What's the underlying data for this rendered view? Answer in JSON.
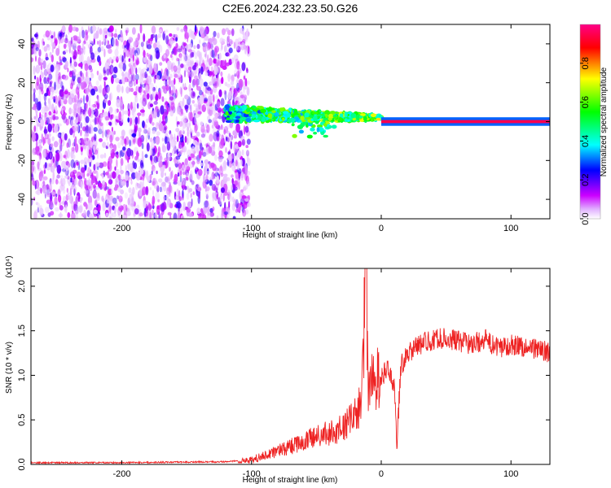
{
  "chart_data": [
    {
      "type": "heatmap",
      "title": "C2E6.2024.232.23.50.G26",
      "xlabel": "Height of straight line (km)",
      "ylabel": "Frequency (Hz)",
      "xlim": [
        -270,
        130
      ],
      "ylim": [
        -50,
        50
      ],
      "x_ticks": [
        -200,
        -100,
        0,
        100
      ],
      "y_ticks": [
        -40,
        -20,
        0,
        20,
        40
      ],
      "colorbar": {
        "label": "Normalized spectral amplitude",
        "range": [
          0,
          1
        ],
        "ticks": [
          "0.0",
          "0.2",
          "0.4",
          "0.6",
          "0.8"
        ],
        "colors": [
          "#ffffff",
          "#cc00ff",
          "#0000ff",
          "#00ffff",
          "#00ff00",
          "#ffff00",
          "#ff0000",
          "#ff00aa"
        ]
      },
      "segments": [
        {
          "name": "noise",
          "x_range": [
            -270,
            -110
          ],
          "freq_range": [
            -50,
            48
          ],
          "amplitude": 0.1
        },
        {
          "name": "signal",
          "x_range": [
            -120,
            0
          ],
          "freq_center": [
            4,
            6,
            5,
            3,
            2
          ],
          "freq_spread": 8,
          "amplitude": 0.5
        },
        {
          "name": "line",
          "x_range": [
            0,
            130
          ],
          "freq_center": 0,
          "amplitude": 0.95
        }
      ]
    },
    {
      "type": "line",
      "title": "",
      "xlabel": "Height of straight line (km)",
      "ylabel": "SNR (10 * v/v)",
      "y_multiplier": "(x10⁴)",
      "xlim": [
        -270,
        130
      ],
      "ylim": [
        0,
        2.2
      ],
      "x_ticks": [
        -200,
        -100,
        0,
        100
      ],
      "y_ticks": [
        "0.0",
        "0.5",
        "1.0",
        "1.5",
        "2.0"
      ],
      "series": [
        {
          "color": "#ee2222",
          "x": [
            -270,
            -200,
            -120,
            -100,
            -80,
            -60,
            -50,
            -40,
            -30,
            -20,
            -15,
            -12,
            -10,
            -5,
            0,
            5,
            10,
            12,
            15,
            20,
            30,
            40,
            50,
            60,
            70,
            80,
            90,
            100,
            110,
            120,
            130
          ],
          "y": [
            0.02,
            0.02,
            0.03,
            0.05,
            0.15,
            0.25,
            0.32,
            0.35,
            0.4,
            0.55,
            0.7,
            2.2,
            0.85,
            0.95,
            1.0,
            1.05,
            0.9,
            0.2,
            1.1,
            1.25,
            1.35,
            1.4,
            1.42,
            1.38,
            1.35,
            1.4,
            1.3,
            1.35,
            1.32,
            1.3,
            1.25
          ]
        }
      ]
    }
  ]
}
